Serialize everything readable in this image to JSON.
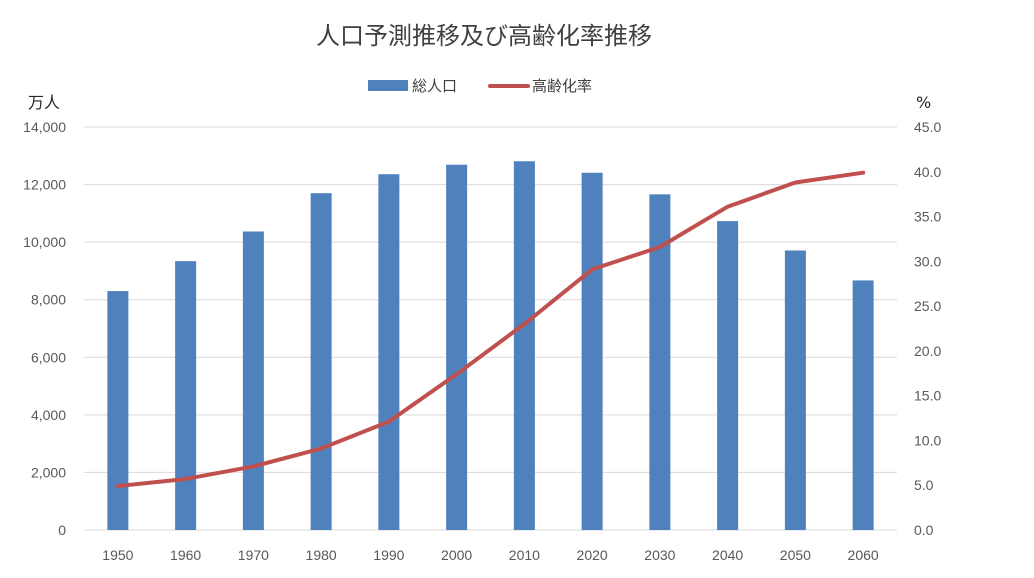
{
  "chart_data": {
    "type": "bar+line",
    "title": "人口予測推移及び高齢化率推移",
    "categories": [
      "1950",
      "1960",
      "1970",
      "1980",
      "1990",
      "2000",
      "2010",
      "2020",
      "2030",
      "2040",
      "2050",
      "2060"
    ],
    "series": [
      {
        "name": "総人口",
        "type": "bar",
        "axis": "left",
        "color": "#4f81bd",
        "values": [
          8300,
          9340,
          10370,
          11700,
          12360,
          12690,
          12810,
          12410,
          11660,
          10730,
          9710,
          8670
        ]
      },
      {
        "name": "高齢化率",
        "type": "line",
        "axis": "right",
        "color": "#c0504d",
        "values": [
          4.9,
          5.7,
          7.1,
          9.1,
          12.1,
          17.4,
          23.0,
          29.1,
          31.6,
          36.1,
          38.8,
          39.9
        ]
      }
    ],
    "y_left": {
      "unit": "万人",
      "min": 0,
      "max": 14000,
      "ticks": [
        "0",
        "2,000",
        "4,000",
        "6,000",
        "8,000",
        "10,000",
        "12,000",
        "14,000"
      ]
    },
    "y_right": {
      "unit": "%",
      "min": 0,
      "max": 45,
      "ticks": [
        "0.0",
        "5.0",
        "10.0",
        "15.0",
        "20.0",
        "25.0",
        "30.0",
        "35.0",
        "40.0",
        "45.0"
      ]
    },
    "grid": true,
    "legend": "top-center"
  }
}
